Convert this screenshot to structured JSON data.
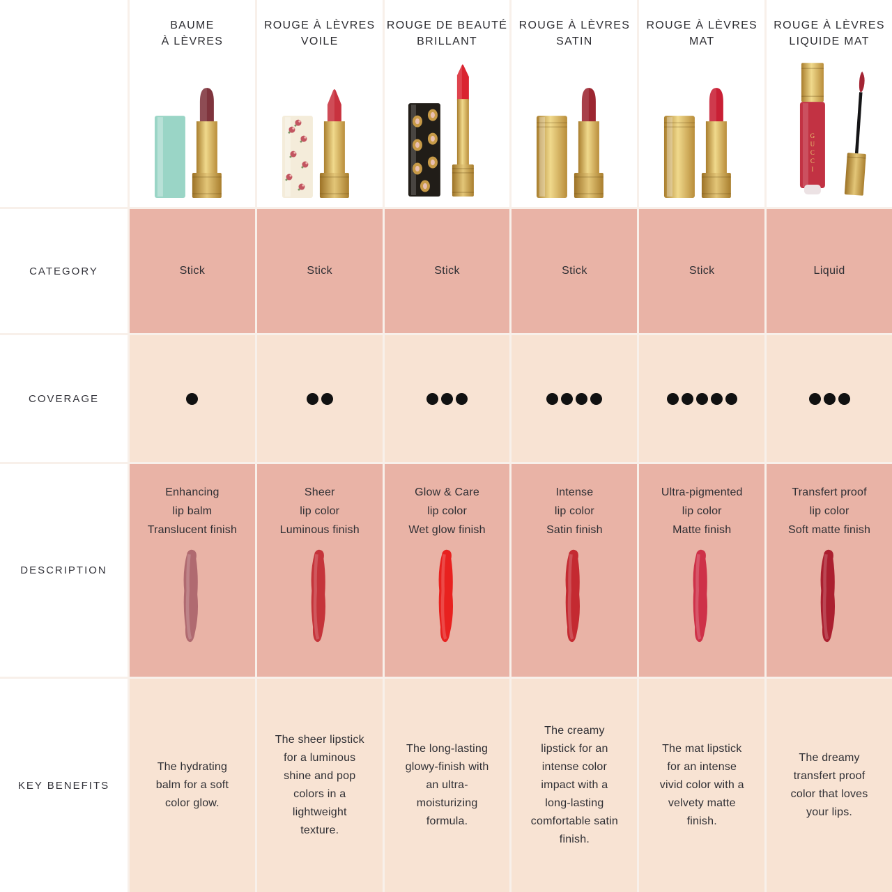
{
  "colors": {
    "row_dark": "#e9b3a6",
    "row_light": "#f8e3d3",
    "dot": "#111111",
    "text": "#2e2e33",
    "gold": "#d4af5a"
  },
  "row_labels": {
    "category": "CATEGORY",
    "coverage": "COVERAGE",
    "description": "DESCRIPTION",
    "key_benefits": "KEY BENEFITS"
  },
  "products": [
    {
      "name_lines": [
        "BAUME",
        "À LÈVRES"
      ],
      "category": "Stick",
      "coverage": 1,
      "description_lines": [
        "Enhancing",
        "lip balm",
        "Translucent finish"
      ],
      "key_benefits": "The hydrating balm for a soft color glow.",
      "swatch_color": "#b06a70",
      "packaging": {
        "variant": "classic",
        "cap_color": "#9ad5c6",
        "cap_pattern": "none",
        "bullet_color": "#7f343d",
        "bullet_shape": "dome"
      }
    },
    {
      "name_lines": [
        "ROUGE À LÈVRES",
        "VOILE"
      ],
      "category": "Stick",
      "coverage": 2,
      "description_lines": [
        "Sheer",
        "lip color",
        "Luminous finish"
      ],
      "key_benefits": "The sheer lipstick for a luminous shine and pop colors in a lightweight texture.",
      "swatch_color": "#c5343a",
      "packaging": {
        "variant": "classic",
        "cap_color": "#f4ecda",
        "cap_pattern": "roses",
        "bullet_color": "#c8323f",
        "bullet_shape": "cone"
      }
    },
    {
      "name_lines": [
        "ROUGE DE BEAUTÉ",
        "BRILLANT"
      ],
      "category": "Stick",
      "coverage": 3,
      "description_lines": [
        "Glow & Care",
        "lip color",
        "Wet glow finish"
      ],
      "key_benefits": "The long-lasting glowy-finish with an ultra-moisturizing formula.",
      "swatch_color": "#e8211f",
      "packaging": {
        "variant": "slim",
        "cap_color": "#211d18",
        "cap_pattern": "jewels",
        "bullet_color": "#da2430",
        "bullet_shape": "slant"
      }
    },
    {
      "name_lines": [
        "ROUGE À LÈVRES",
        "SATIN"
      ],
      "category": "Stick",
      "coverage": 4,
      "description_lines": [
        "Intense",
        "lip color",
        "Satin finish"
      ],
      "key_benefits": "The creamy lipstick for an intense color impact with a long-lasting comfortable satin finish.",
      "swatch_color": "#c42a31",
      "packaging": {
        "variant": "classic",
        "cap_color": "gold",
        "cap_pattern": "none",
        "bullet_color": "#9c2631",
        "bullet_shape": "dome"
      }
    },
    {
      "name_lines": [
        "ROUGE À LÈVRES",
        "MAT"
      ],
      "category": "Stick",
      "coverage": 5,
      "description_lines": [
        "Ultra-pigmented",
        "lip color",
        "Matte finish"
      ],
      "key_benefits": "The mat lipstick for an intense vivid color with a velvety matte finish.",
      "swatch_color": "#ce3148",
      "packaging": {
        "variant": "classic",
        "cap_color": "gold",
        "cap_pattern": "none",
        "bullet_color": "#c91f35",
        "bullet_shape": "dome"
      }
    },
    {
      "name_lines": [
        "ROUGE À LÈVRES",
        "LIQUIDE MAT"
      ],
      "category": "Liquid",
      "coverage": 3,
      "description_lines": [
        "Transfert proof",
        "lip color",
        "Soft matte finish"
      ],
      "key_benefits": "The dreamy transfert proof color that loves your lips.",
      "swatch_color": "#ab1f2f",
      "packaging": {
        "variant": "liquid",
        "cap_color": "gold",
        "cap_pattern": "none",
        "bullet_color": "#c23243",
        "bullet_shape": "doe-foot",
        "label_text": "GUCCI"
      }
    }
  ],
  "chart_data": {
    "type": "table",
    "columns": [
      "BAUME À LÈVRES",
      "ROUGE À LÈVRES VOILE",
      "ROUGE DE BEAUTÉ BRILLANT",
      "ROUGE À LÈVRES SATIN",
      "ROUGE À LÈVRES MAT",
      "ROUGE À LÈVRES LIQUIDE MAT"
    ],
    "rows": [
      {
        "label": "CATEGORY",
        "values": [
          "Stick",
          "Stick",
          "Stick",
          "Stick",
          "Stick",
          "Liquid"
        ]
      },
      {
        "label": "COVERAGE",
        "values": [
          1,
          2,
          3,
          4,
          5,
          3
        ]
      },
      {
        "label": "DESCRIPTION",
        "values": [
          "Enhancing lip balm — Translucent finish",
          "Sheer lip color — Luminous finish",
          "Glow & Care lip color — Wet glow finish",
          "Intense lip color — Satin finish",
          "Ultra-pigmented lip color — Matte finish",
          "Transfert proof lip color — Soft matte finish"
        ]
      },
      {
        "label": "KEY BENEFITS",
        "values": [
          "The hydrating balm for a soft color glow.",
          "The sheer lipstick for a luminous shine and pop colors in a lightweight texture.",
          "The long-lasting glowy-finish with an ultra-moisturizing formula.",
          "The creamy lipstick for an intense color impact with a long-lasting comfortable satin finish.",
          "The mat lipstick for an intense vivid color with a velvety matte finish.",
          "The dreamy transfert proof color that loves your lips."
        ]
      }
    ],
    "legend_position": "none",
    "grid": true
  }
}
